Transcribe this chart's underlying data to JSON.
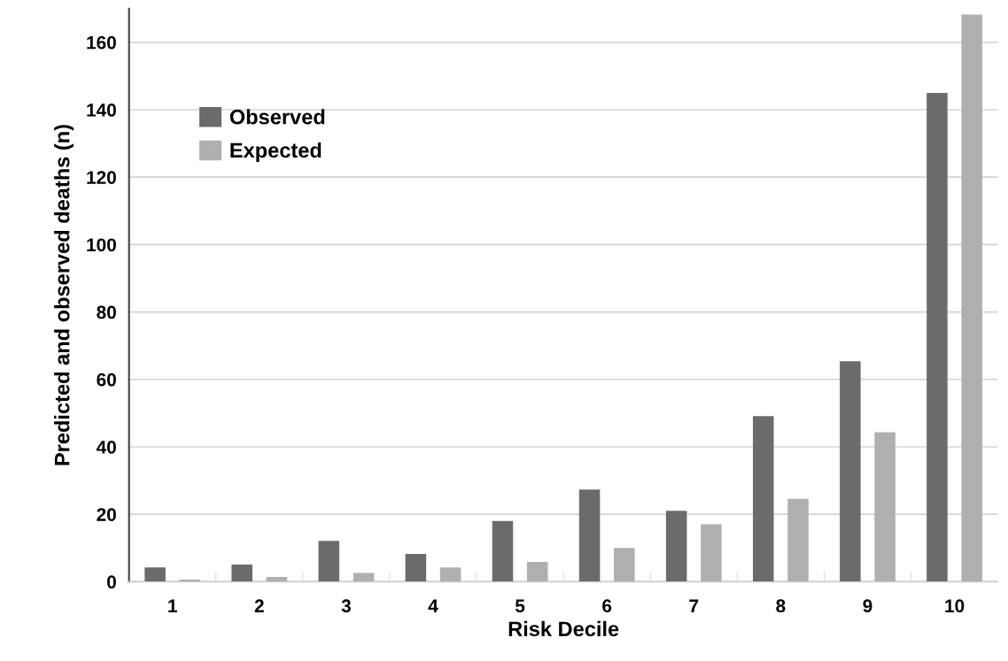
{
  "chart_data": {
    "type": "bar",
    "xlabel": "Risk Decile",
    "ylabel": "Predicted and observed deaths (n)",
    "categories": [
      "1",
      "2",
      "3",
      "4",
      "5",
      "6",
      "7",
      "8",
      "9",
      "10"
    ],
    "series": [
      {
        "name": "Observed",
        "color": "#6b6b6b",
        "values": [
          4.2,
          5.1,
          12.1,
          8.2,
          18.0,
          27.3,
          21.0,
          49.1,
          65.4,
          145.0
        ]
      },
      {
        "name": "Expected",
        "color": "#afafaf",
        "values": [
          0.6,
          1.4,
          2.6,
          4.2,
          5.9,
          10.0,
          17.0,
          24.6,
          44.3,
          168.2
        ]
      }
    ],
    "ylim": [
      0,
      170
    ],
    "yticks": [
      0,
      20,
      40,
      60,
      80,
      100,
      120,
      140,
      160
    ],
    "grid": "y",
    "legend": "top left"
  }
}
